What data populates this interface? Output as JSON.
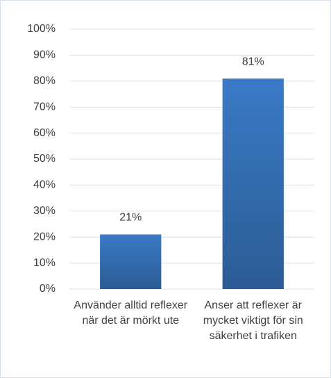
{
  "chart_data": {
    "type": "bar",
    "categories": [
      "Använder alltid reflexer när det är mörkt ute",
      "Anser att reflexer är mycket viktigt för sin säkerhet i trafiken"
    ],
    "values": [
      21,
      81
    ],
    "value_labels": [
      "21%",
      "81%"
    ],
    "color": "#3a7ac6",
    "ylim": [
      0,
      100
    ],
    "yticks": [
      {
        "value": 0,
        "label": "0%"
      },
      {
        "value": 10,
        "label": "10%"
      },
      {
        "value": 20,
        "label": "20%"
      },
      {
        "value": 30,
        "label": "30%"
      },
      {
        "value": 40,
        "label": "40%"
      },
      {
        "value": 50,
        "label": "50%"
      },
      {
        "value": 60,
        "label": "60%"
      },
      {
        "value": 70,
        "label": "70%"
      },
      {
        "value": 80,
        "label": "80%"
      },
      {
        "value": 90,
        "label": "90%"
      },
      {
        "value": 100,
        "label": "100%"
      }
    ],
    "grid": true
  }
}
